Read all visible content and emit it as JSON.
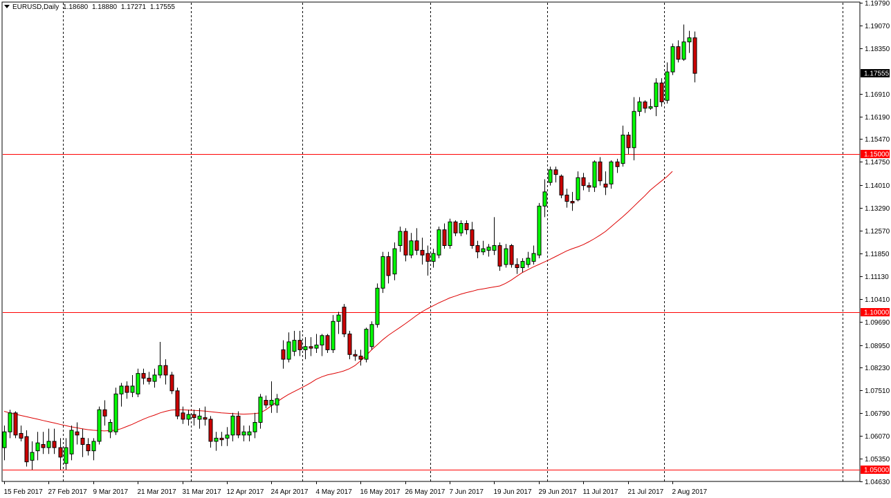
{
  "header": {
    "symbol": "EURUSD,Daily",
    "open": "1.18680",
    "high": "1.18880",
    "low": "1.17271",
    "close": "1.17555"
  },
  "colors": {
    "background": "#ffffff",
    "bull_candle": "#00ff00",
    "bear_candle": "#cc0000",
    "wick": "#000000",
    "level_line": "#ff0000",
    "moving_average": "#dd0000",
    "grid": "#000000",
    "label_bg_red": "#ff0000",
    "label_bg_black": "#000000"
  },
  "chart_data": {
    "type": "candlestick",
    "title": "EURUSD,Daily",
    "symbol": "EURUSD",
    "timeframe": "Daily",
    "ylim": [
      1.0463,
      1.1979
    ],
    "y_ticks": [
      "1.19790",
      "1.19070",
      "1.18350",
      "1.16910",
      "1.16190",
      "1.15470",
      "1.14750",
      "1.14010",
      "1.13290",
      "1.12570",
      "1.11850",
      "1.11130",
      "1.10410",
      "1.09690",
      "1.08950",
      "1.08230",
      "1.07510",
      "1.06790",
      "1.06070",
      "1.05350",
      "1.04630"
    ],
    "x_ticks": [
      {
        "label": "15 Feb 2017",
        "index": 0
      },
      {
        "label": "27 Feb 2017",
        "index": 8
      },
      {
        "label": "9 Mar 2017",
        "index": 16
      },
      {
        "label": "21 Mar 2017",
        "index": 24
      },
      {
        "label": "31 Mar 2017",
        "index": 32
      },
      {
        "label": "12 Apr 2017",
        "index": 40
      },
      {
        "label": "24 Apr 2017",
        "index": 48
      },
      {
        "label": "4 May 2017",
        "index": 56
      },
      {
        "label": "16 May 2017",
        "index": 64
      },
      {
        "label": "26 May 2017",
        "index": 72
      },
      {
        "label": "7 Jun 2017",
        "index": 80
      },
      {
        "label": "19 Jun 2017",
        "index": 88
      },
      {
        "label": "29 Jun 2017",
        "index": 96
      },
      {
        "label": "11 Jul 2017",
        "index": 104
      },
      {
        "label": "21 Jul 2017",
        "index": 112
      },
      {
        "label": "2 Aug 2017",
        "index": 120
      }
    ],
    "vertical_separators": [
      10,
      33,
      53,
      76,
      97,
      118,
      150
    ],
    "horizontal_levels": [
      1.15,
      1.1,
      1.05
    ],
    "current_price": 1.17555,
    "price_labels": [
      {
        "text": "1.17555",
        "value": 1.17555,
        "style": "black"
      },
      {
        "text": "1.15000",
        "value": 1.15,
        "style": "red"
      },
      {
        "text": "1.10000",
        "value": 1.1,
        "style": "red"
      },
      {
        "text": "1.05000",
        "value": 1.05,
        "style": "red"
      }
    ],
    "candles": [
      {
        "o": 1.057,
        "h": 1.064,
        "l": 1.053,
        "c": 1.062
      },
      {
        "o": 1.062,
        "h": 1.069,
        "l": 1.06,
        "c": 1.068
      },
      {
        "o": 1.068,
        "h": 1.0685,
        "l": 1.06,
        "c": 1.061
      },
      {
        "o": 1.0615,
        "h": 1.064,
        "l": 1.059,
        "c": 1.06
      },
      {
        "o": 1.0605,
        "h": 1.0625,
        "l": 1.051,
        "c": 1.0525
      },
      {
        "o": 1.053,
        "h": 1.059,
        "l": 1.05,
        "c": 1.0555
      },
      {
        "o": 1.056,
        "h": 1.062,
        "l": 1.053,
        "c": 1.0585
      },
      {
        "o": 1.058,
        "h": 1.062,
        "l": 1.055,
        "c": 1.057
      },
      {
        "o": 1.057,
        "h": 1.063,
        "l": 1.055,
        "c": 1.059
      },
      {
        "o": 1.059,
        "h": 1.063,
        "l": 1.055,
        "c": 1.057
      },
      {
        "o": 1.057,
        "h": 1.06,
        "l": 1.05,
        "c": 1.054
      },
      {
        "o": 1.052,
        "h": 1.06,
        "l": 1.05,
        "c": 1.057
      },
      {
        "o": 1.055,
        "h": 1.064,
        "l": 1.053,
        "c": 1.0625
      },
      {
        "o": 1.062,
        "h": 1.065,
        "l": 1.058,
        "c": 1.061
      },
      {
        "o": 1.06,
        "h": 1.063,
        "l": 1.054,
        "c": 1.058
      },
      {
        "o": 1.058,
        "h": 1.06,
        "l": 1.0545,
        "c": 1.056
      },
      {
        "o": 1.056,
        "h": 1.06,
        "l": 1.053,
        "c": 1.059
      },
      {
        "o": 1.059,
        "h": 1.07,
        "l": 1.058,
        "c": 1.069
      },
      {
        "o": 1.069,
        "h": 1.072,
        "l": 1.064,
        "c": 1.067
      },
      {
        "o": 1.062,
        "h": 1.066,
        "l": 1.06,
        "c": 1.065
      },
      {
        "o": 1.062,
        "h": 1.076,
        "l": 1.061,
        "c": 1.074
      },
      {
        "o": 1.074,
        "h": 1.0775,
        "l": 1.07,
        "c": 1.0765
      },
      {
        "o": 1.0765,
        "h": 1.078,
        "l": 1.0725,
        "c": 1.0745
      },
      {
        "o": 1.0745,
        "h": 1.08,
        "l": 1.073,
        "c": 1.0765
      },
      {
        "o": 1.074,
        "h": 1.082,
        "l": 1.073,
        "c": 1.0805
      },
      {
        "o": 1.0805,
        "h": 1.082,
        "l": 1.077,
        "c": 1.079
      },
      {
        "o": 1.079,
        "h": 1.081,
        "l": 1.077,
        "c": 1.078
      },
      {
        "o": 1.078,
        "h": 1.082,
        "l": 1.076,
        "c": 1.08
      },
      {
        "o": 1.08,
        "h": 1.0905,
        "l": 1.079,
        "c": 1.083
      },
      {
        "o": 1.083,
        "h": 1.085,
        "l": 1.077,
        "c": 1.08
      },
      {
        "o": 1.08,
        "h": 1.081,
        "l": 1.074,
        "c": 1.075
      },
      {
        "o": 1.075,
        "h": 1.076,
        "l": 1.066,
        "c": 1.067
      },
      {
        "o": 1.068,
        "h": 1.07,
        "l": 1.0645,
        "c": 1.066
      },
      {
        "o": 1.066,
        "h": 1.069,
        "l": 1.064,
        "c": 1.0675
      },
      {
        "o": 1.0675,
        "h": 1.069,
        "l": 1.064,
        "c": 1.0665
      },
      {
        "o": 1.066,
        "h": 1.0695,
        "l": 1.063,
        "c": 1.067
      },
      {
        "o": 1.0665,
        "h": 1.07,
        "l": 1.064,
        "c": 1.066
      },
      {
        "o": 1.066,
        "h": 1.067,
        "l": 1.057,
        "c": 1.059
      },
      {
        "o": 1.059,
        "h": 1.062,
        "l": 1.056,
        "c": 1.06
      },
      {
        "o": 1.06,
        "h": 1.062,
        "l": 1.0575,
        "c": 1.0595
      },
      {
        "o": 1.06,
        "h": 1.0635,
        "l": 1.0575,
        "c": 1.061
      },
      {
        "o": 1.061,
        "h": 1.068,
        "l": 1.059,
        "c": 1.067
      },
      {
        "o": 1.067,
        "h": 1.0685,
        "l": 1.06,
        "c": 1.061
      },
      {
        "o": 1.061,
        "h": 1.064,
        "l": 1.059,
        "c": 1.062
      },
      {
        "o": 1.061,
        "h": 1.064,
        "l": 1.059,
        "c": 1.062
      },
      {
        "o": 1.062,
        "h": 1.068,
        "l": 1.06,
        "c": 1.065
      },
      {
        "o": 1.065,
        "h": 1.074,
        "l": 1.063,
        "c": 1.073
      },
      {
        "o": 1.072,
        "h": 1.0735,
        "l": 1.0695,
        "c": 1.0705
      },
      {
        "o": 1.0705,
        "h": 1.078,
        "l": 1.068,
        "c": 1.072
      },
      {
        "o": 1.0705,
        "h": 1.074,
        "l": 1.068,
        "c": 1.0725
      },
      {
        "o": 1.088,
        "h": 1.091,
        "l": 1.082,
        "c": 1.085
      },
      {
        "o": 1.085,
        "h": 1.0935,
        "l": 1.084,
        "c": 1.0905
      },
      {
        "o": 1.0875,
        "h": 1.094,
        "l": 1.086,
        "c": 1.091
      },
      {
        "o": 1.091,
        "h": 1.094,
        "l": 1.086,
        "c": 1.088
      },
      {
        "o": 1.088,
        "h": 1.092,
        "l": 1.085,
        "c": 1.089
      },
      {
        "o": 1.089,
        "h": 1.092,
        "l": 1.086,
        "c": 1.0885
      },
      {
        "o": 1.0885,
        "h": 1.093,
        "l": 1.087,
        "c": 1.0895
      },
      {
        "o": 1.0895,
        "h": 1.093,
        "l": 1.086,
        "c": 1.0925
      },
      {
        "o": 1.0925,
        "h": 1.093,
        "l": 1.087,
        "c": 1.088
      },
      {
        "o": 1.088,
        "h": 1.099,
        "l": 1.087,
        "c": 1.097
      },
      {
        "o": 1.097,
        "h": 1.1,
        "l": 1.093,
        "c": 1.099
      },
      {
        "o": 1.1015,
        "h": 1.1025,
        "l": 1.092,
        "c": 1.093
      },
      {
        "o": 1.093,
        "h": 1.094,
        "l": 1.085,
        "c": 1.0865
      },
      {
        "o": 1.0865,
        "h": 1.088,
        "l": 1.0845,
        "c": 1.086
      },
      {
        "o": 1.086,
        "h": 1.088,
        "l": 1.083,
        "c": 1.085
      },
      {
        "o": 1.085,
        "h": 1.095,
        "l": 1.084,
        "c": 1.0945
      },
      {
        "o": 1.089,
        "h": 1.097,
        "l": 1.088,
        "c": 1.096
      },
      {
        "o": 1.096,
        "h": 1.109,
        "l": 1.095,
        "c": 1.1075
      },
      {
        "o": 1.1075,
        "h": 1.119,
        "l": 1.106,
        "c": 1.1175
      },
      {
        "o": 1.1175,
        "h": 1.119,
        "l": 1.109,
        "c": 1.1115
      },
      {
        "o": 1.112,
        "h": 1.122,
        "l": 1.11,
        "c": 1.12
      },
      {
        "o": 1.121,
        "h": 1.127,
        "l": 1.119,
        "c": 1.1255
      },
      {
        "o": 1.1255,
        "h": 1.1265,
        "l": 1.116,
        "c": 1.118
      },
      {
        "o": 1.118,
        "h": 1.125,
        "l": 1.117,
        "c": 1.1225
      },
      {
        "o": 1.1225,
        "h": 1.1265,
        "l": 1.118,
        "c": 1.1195
      },
      {
        "o": 1.1195,
        "h": 1.1235,
        "l": 1.115,
        "c": 1.118
      },
      {
        "o": 1.1185,
        "h": 1.121,
        "l": 1.1115,
        "c": 1.116
      },
      {
        "o": 1.116,
        "h": 1.12,
        "l": 1.114,
        "c": 1.1185
      },
      {
        "o": 1.118,
        "h": 1.127,
        "l": 1.117,
        "c": 1.126
      },
      {
        "o": 1.126,
        "h": 1.128,
        "l": 1.12,
        "c": 1.121
      },
      {
        "o": 1.121,
        "h": 1.1295,
        "l": 1.12,
        "c": 1.1285
      },
      {
        "o": 1.1285,
        "h": 1.129,
        "l": 1.124,
        "c": 1.125
      },
      {
        "o": 1.125,
        "h": 1.129,
        "l": 1.124,
        "c": 1.128
      },
      {
        "o": 1.128,
        "h": 1.129,
        "l": 1.1245,
        "c": 1.126
      },
      {
        "o": 1.126,
        "h": 1.1285,
        "l": 1.12,
        "c": 1.121
      },
      {
        "o": 1.121,
        "h": 1.1225,
        "l": 1.117,
        "c": 1.119
      },
      {
        "o": 1.119,
        "h": 1.1225,
        "l": 1.118,
        "c": 1.12
      },
      {
        "o": 1.1195,
        "h": 1.1215,
        "l": 1.1175,
        "c": 1.1205
      },
      {
        "o": 1.1195,
        "h": 1.13,
        "l": 1.118,
        "c": 1.121
      },
      {
        "o": 1.121,
        "h": 1.122,
        "l": 1.113,
        "c": 1.1145
      },
      {
        "o": 1.115,
        "h": 1.1215,
        "l": 1.114,
        "c": 1.12
      },
      {
        "o": 1.121,
        "h": 1.1215,
        "l": 1.114,
        "c": 1.115
      },
      {
        "o": 1.115,
        "h": 1.117,
        "l": 1.112,
        "c": 1.114
      },
      {
        "o": 1.114,
        "h": 1.117,
        "l": 1.1125,
        "c": 1.116
      },
      {
        "o": 1.115,
        "h": 1.119,
        "l": 1.114,
        "c": 1.117
      },
      {
        "o": 1.116,
        "h": 1.121,
        "l": 1.115,
        "c": 1.1185
      },
      {
        "o": 1.118,
        "h": 1.1345,
        "l": 1.117,
        "c": 1.1335
      },
      {
        "o": 1.1335,
        "h": 1.142,
        "l": 1.13,
        "c": 1.138
      },
      {
        "o": 1.141,
        "h": 1.146,
        "l": 1.14,
        "c": 1.145
      },
      {
        "o": 1.145,
        "h": 1.146,
        "l": 1.141,
        "c": 1.1435
      },
      {
        "o": 1.143,
        "h": 1.1435,
        "l": 1.136,
        "c": 1.137
      },
      {
        "o": 1.137,
        "h": 1.139,
        "l": 1.133,
        "c": 1.135
      },
      {
        "o": 1.135,
        "h": 1.138,
        "l": 1.132,
        "c": 1.1345
      },
      {
        "o": 1.1355,
        "h": 1.1445,
        "l": 1.135,
        "c": 1.1425
      },
      {
        "o": 1.1425,
        "h": 1.144,
        "l": 1.1385,
        "c": 1.14
      },
      {
        "o": 1.14,
        "h": 1.141,
        "l": 1.138,
        "c": 1.1395
      },
      {
        "o": 1.1395,
        "h": 1.148,
        "l": 1.138,
        "c": 1.1475
      },
      {
        "o": 1.1475,
        "h": 1.149,
        "l": 1.14,
        "c": 1.1415
      },
      {
        "o": 1.1405,
        "h": 1.1445,
        "l": 1.137,
        "c": 1.1395
      },
      {
        "o": 1.1405,
        "h": 1.148,
        "l": 1.139,
        "c": 1.1475
      },
      {
        "o": 1.1475,
        "h": 1.1485,
        "l": 1.144,
        "c": 1.146
      },
      {
        "o": 1.147,
        "h": 1.159,
        "l": 1.146,
        "c": 1.156
      },
      {
        "o": 1.156,
        "h": 1.157,
        "l": 1.15,
        "c": 1.152
      },
      {
        "o": 1.152,
        "h": 1.168,
        "l": 1.148,
        "c": 1.1635
      },
      {
        "o": 1.1635,
        "h": 1.168,
        "l": 1.162,
        "c": 1.1665
      },
      {
        "o": 1.1665,
        "h": 1.167,
        "l": 1.163,
        "c": 1.1645
      },
      {
        "o": 1.1645,
        "h": 1.1675,
        "l": 1.164,
        "c": 1.165
      },
      {
        "o": 1.165,
        "h": 1.174,
        "l": 1.162,
        "c": 1.1725
      },
      {
        "o": 1.1725,
        "h": 1.174,
        "l": 1.165,
        "c": 1.1665
      },
      {
        "o": 1.167,
        "h": 1.179,
        "l": 1.166,
        "c": 1.176
      },
      {
        "o": 1.176,
        "h": 1.185,
        "l": 1.175,
        "c": 1.184
      },
      {
        "o": 1.184,
        "h": 1.186,
        "l": 1.179,
        "c": 1.18
      },
      {
        "o": 1.18,
        "h": 1.191,
        "l": 1.1795,
        "c": 1.1855
      },
      {
        "o": 1.1855,
        "h": 1.189,
        "l": 1.182,
        "c": 1.1868
      },
      {
        "o": 1.1868,
        "h": 1.1888,
        "l": 1.1727,
        "c": 1.17555
      }
    ],
    "moving_average": [
      1.0685,
      1.068,
      1.0676,
      1.0672,
      1.0668,
      1.0664,
      1.066,
      1.0656,
      1.0652,
      1.0648,
      1.0644,
      1.064,
      1.0636,
      1.0633,
      1.063,
      1.0627,
      1.0625,
      1.0624,
      1.0623,
      1.0624,
      1.0625,
      1.063,
      1.0637,
      1.0644,
      1.0652,
      1.066,
      1.0667,
      1.0673,
      1.068,
      1.0685,
      1.0689,
      1.069,
      1.069,
      1.0689,
      1.0688,
      1.0687,
      1.0686,
      1.0684,
      1.0682,
      1.068,
      1.0679,
      1.0678,
      1.0677,
      1.0676,
      1.0677,
      1.0678,
      1.068,
      1.069,
      1.0703,
      1.0715,
      1.0727,
      1.0738,
      1.0747,
      1.0756,
      1.0765,
      1.0775,
      1.0786,
      1.0794,
      1.08,
      1.0804,
      1.0808,
      1.0813,
      1.082,
      1.083,
      1.0845,
      1.0862,
      1.088,
      1.0896,
      1.0912,
      1.0926,
      1.0938,
      1.095,
      1.0962,
      1.0975,
      1.0988,
      1.1,
      1.101,
      1.1019,
      1.1028,
      1.1036,
      1.1044,
      1.105,
      1.1056,
      1.1061,
      1.1065,
      1.107,
      1.1073,
      1.1076,
      1.1079,
      1.1082,
      1.109,
      1.11,
      1.1112,
      1.1124,
      1.1133,
      1.1142,
      1.115,
      1.1158,
      1.1166,
      1.1175,
      1.1184,
      1.1193,
      1.12,
      1.1206,
      1.1213,
      1.1222,
      1.1232,
      1.1243,
      1.1255,
      1.127,
      1.1285,
      1.13,
      1.1316,
      1.1333,
      1.135,
      1.1367,
      1.1385,
      1.14,
      1.1414,
      1.1428,
      1.1445
    ]
  }
}
